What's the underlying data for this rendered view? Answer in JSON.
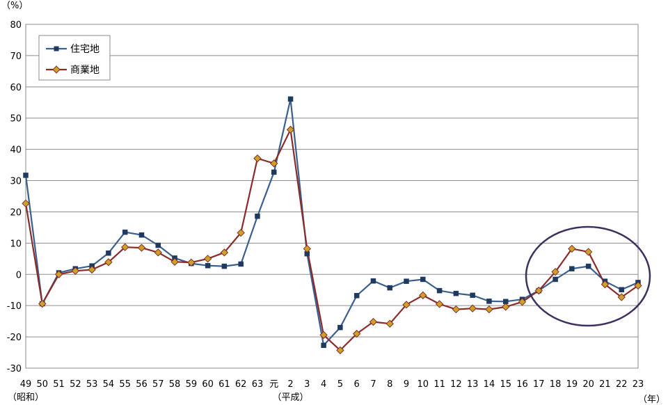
{
  "chart_data": {
    "type": "line",
    "y_unit": "（%）",
    "x_unit": "（年）",
    "categories": [
      "49",
      "50",
      "51",
      "52",
      "53",
      "54",
      "55",
      "56",
      "57",
      "58",
      "59",
      "60",
      "61",
      "62",
      "63",
      "元",
      "2",
      "3",
      "4",
      "5",
      "6",
      "7",
      "8",
      "9",
      "10",
      "11",
      "12",
      "13",
      "14",
      "15",
      "16",
      "17",
      "18",
      "19",
      "20",
      "21",
      "22",
      "23"
    ],
    "era_labels": [
      {
        "text": "（昭和）",
        "category_index": 0
      },
      {
        "text": "（平成）",
        "category_index": 16
      }
    ],
    "ylim": [
      -30,
      80
    ],
    "yticks": [
      80,
      70,
      60,
      50,
      40,
      30,
      20,
      10,
      0,
      -10,
      -20,
      -30
    ],
    "grid": true,
    "legend_position": "top-left",
    "series": [
      {
        "name": "住宅地",
        "color": "#3A5F8F",
        "marker": "square",
        "values": [
          31.7,
          -9.4,
          0.5,
          1.8,
          2.7,
          6.8,
          13.5,
          12.6,
          9.3,
          5.2,
          3.5,
          2.8,
          2.6,
          3.3,
          18.6,
          32.7,
          56.1,
          6.6,
          -22.7,
          -17.0,
          -6.8,
          -2.1,
          -4.3,
          -2.2,
          -1.6,
          -5.2,
          -6.1,
          -6.7,
          -8.6,
          -8.7,
          -8.0,
          -5.2,
          -1.6,
          1.8,
          2.6,
          -2.2,
          -4.9,
          -2.6
        ]
      },
      {
        "name": "商業地",
        "color": "#8B2A2A",
        "marker": "diamond",
        "values": [
          22.7,
          -9.4,
          0.0,
          1.1,
          1.5,
          3.9,
          8.7,
          8.5,
          7.0,
          4.0,
          3.8,
          5.0,
          7.0,
          13.3,
          37.1,
          35.5,
          46.3,
          8.2,
          -19.4,
          -24.3,
          -19.0,
          -15.2,
          -15.8,
          -9.7,
          -6.7,
          -9.5,
          -11.2,
          -10.9,
          -11.2,
          -10.4,
          -8.8,
          -5.2,
          0.8,
          8.2,
          7.2,
          -3.2,
          -7.3,
          -3.6
        ]
      }
    ]
  }
}
